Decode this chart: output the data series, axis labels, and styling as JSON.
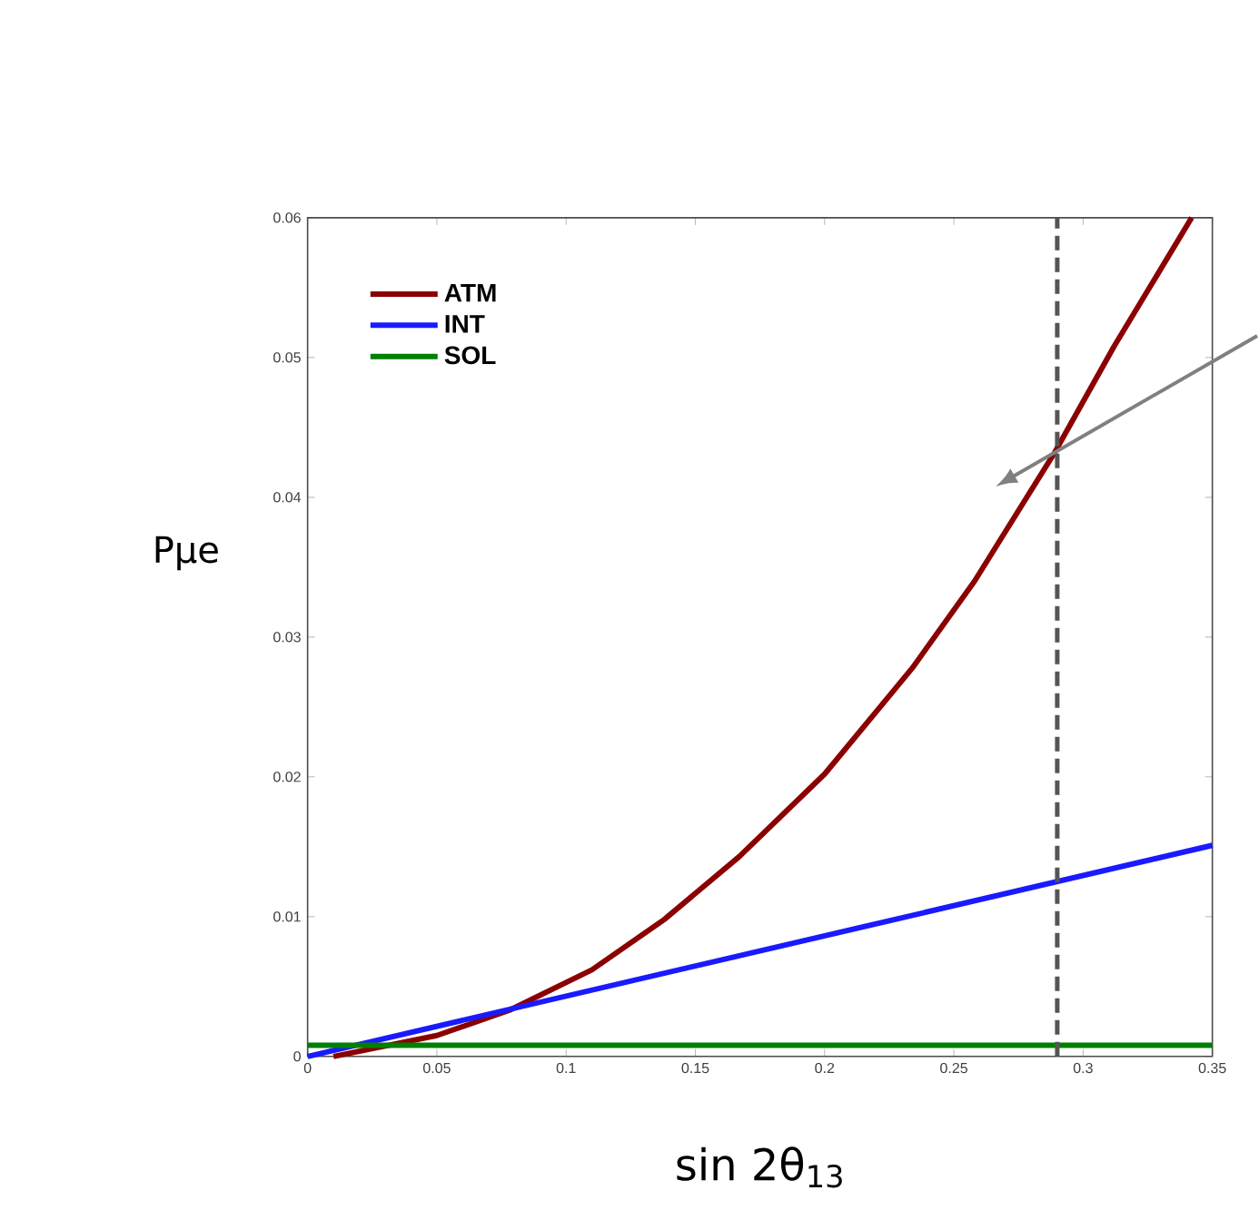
{
  "chart_data": {
    "type": "line",
    "xlabel": "sin 2θ$_{13}$",
    "ylabel": "Pμe",
    "xlim": [
      0,
      0.35
    ],
    "ylim": [
      0,
      0.06
    ],
    "xticks": [
      0,
      0.05,
      0.1,
      0.15,
      0.2,
      0.25,
      0.3,
      0.35
    ],
    "yticks": [
      0,
      0.01,
      0.02,
      0.03,
      0.04,
      0.05,
      0.06
    ],
    "series": [
      {
        "name": "ATM",
        "color": "#8b0000",
        "x": [
          0.01,
          0.05,
          0.078,
          0.11,
          0.138,
          0.167,
          0.2,
          0.234,
          0.258,
          0.289,
          0.312,
          0.342
        ],
        "values": [
          0.0,
          0.0015,
          0.0033,
          0.0062,
          0.0098,
          0.0143,
          0.0202,
          0.0278,
          0.034,
          0.0432,
          0.0508,
          0.06
        ]
      },
      {
        "name": "INT",
        "color": "#1a1aff",
        "x": [
          0,
          0.35
        ],
        "values": [
          0.0,
          0.0151
        ]
      },
      {
        "name": "SOL",
        "color": "#008000",
        "x": [
          0,
          0.35
        ],
        "values": [
          0.0008,
          0.0008
        ]
      }
    ],
    "ref_lines": [
      {
        "axis": "x",
        "value": 0.29,
        "color": "#555555",
        "line_style": "dashed"
      }
    ],
    "legend": "top left",
    "grid": false,
    "marker": "none",
    "line_style": "solid"
  }
}
